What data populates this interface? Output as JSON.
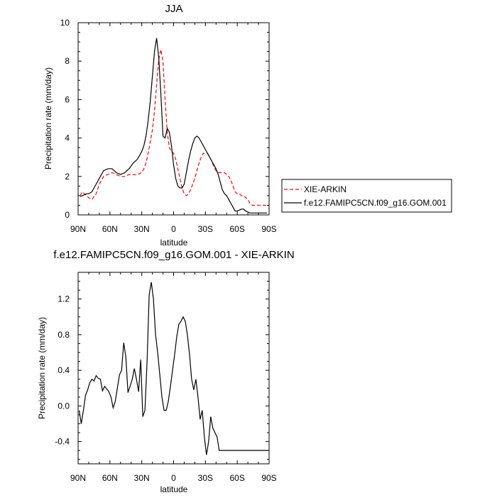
{
  "chart_data": [
    {
      "type": "line",
      "title": "JJA",
      "xlabel": "latitude",
      "ylabel": "Precipitation rate (mm/day)",
      "xlim": [
        -90,
        90
      ],
      "ylim": [
        0,
        10
      ],
      "x_ticks": [
        -90,
        -60,
        -30,
        0,
        30,
        60,
        90
      ],
      "x_tick_labels": [
        "90N",
        "60N",
        "30N",
        "0",
        "30S",
        "60S",
        "90S"
      ],
      "y_ticks": [
        0,
        2,
        4,
        6,
        8,
        10
      ],
      "y_tick_labels": [
        "0",
        "2",
        "4",
        "6",
        "8",
        "10"
      ],
      "legend": {
        "placement": "outside-right",
        "entries": [
          "XIE-ARKIN",
          "f.e12.FAMIPC5CN.f09_g16.GOM.001"
        ]
      },
      "series": [
        {
          "name": "XIE-ARKIN",
          "style": "dashed",
          "color": "#ff0000",
          "x": [
            -88,
            -86,
            -84,
            -82,
            -80,
            -77,
            -73,
            -70,
            -66,
            -62,
            -58,
            -54,
            -50,
            -46,
            -42,
            -38,
            -34,
            -30,
            -28,
            -26,
            -24,
            -22,
            -20,
            -18,
            -16,
            -14,
            -12,
            -10,
            -8,
            -6,
            -4,
            -2,
            0,
            2,
            4,
            6,
            8,
            10,
            12,
            14,
            16,
            18,
            20,
            22,
            24,
            26,
            28,
            30,
            32,
            34,
            36,
            38,
            40,
            42,
            44,
            46,
            48,
            50,
            52,
            54,
            56,
            58,
            60,
            62,
            64,
            66,
            68,
            70,
            72,
            74,
            76,
            78,
            80,
            82,
            84,
            86,
            88
          ],
          "values": [
            1.0,
            1.2,
            1.1,
            1.0,
            0.9,
            0.8,
            1.1,
            1.6,
            2.0,
            2.1,
            2.2,
            2.1,
            2.0,
            2.0,
            2.1,
            2.1,
            2.1,
            2.2,
            2.4,
            2.7,
            3.2,
            3.8,
            4.4,
            5.4,
            6.8,
            8.1,
            8.6,
            8.0,
            6.0,
            4.3,
            3.5,
            3.3,
            3.2,
            2.9,
            2.4,
            1.9,
            1.4,
            1.1,
            1.0,
            1.1,
            1.3,
            1.6,
            1.9,
            2.3,
            2.7,
            3.0,
            3.2,
            3.2,
            3.2,
            3.0,
            2.8,
            2.5,
            2.3,
            2.2,
            2.2,
            2.2,
            2.2,
            2.1,
            2.0,
            1.8,
            1.5,
            1.2,
            1.1,
            1.1,
            1.0,
            1.0,
            0.9,
            0.8,
            0.6,
            0.5,
            0.5,
            0.5,
            0.5,
            0.5,
            0.5,
            0.5,
            0.5
          ]
        },
        {
          "name": "f.e12.FAMIPC5CN.f09_g16.GOM.001",
          "style": "solid",
          "color": "#000000",
          "x": [
            -88,
            -86,
            -84,
            -82,
            -80,
            -77,
            -73,
            -70,
            -66,
            -62,
            -58,
            -54,
            -50,
            -46,
            -42,
            -38,
            -34,
            -30,
            -28,
            -26,
            -24,
            -22,
            -20,
            -18,
            -16,
            -14,
            -12,
            -10,
            -8,
            -6,
            -4,
            -2,
            0,
            2,
            4,
            6,
            8,
            10,
            12,
            14,
            16,
            18,
            20,
            22,
            24,
            26,
            28,
            30,
            32,
            34,
            36,
            38,
            40,
            42,
            44,
            46,
            48,
            50,
            52,
            54,
            56,
            58,
            60,
            62,
            64,
            66,
            68,
            70,
            72,
            74,
            76,
            78,
            80,
            82,
            84,
            86,
            88
          ],
          "values": [
            0.95,
            1.0,
            1.05,
            1.1,
            1.1,
            1.2,
            1.6,
            1.9,
            2.3,
            2.4,
            2.4,
            2.2,
            2.1,
            2.2,
            2.4,
            2.7,
            2.9,
            3.3,
            3.6,
            4.1,
            4.9,
            5.9,
            7.2,
            8.5,
            9.2,
            8.2,
            6.3,
            4.1,
            4.0,
            4.5,
            4.3,
            3.6,
            2.6,
            1.9,
            1.5,
            1.4,
            1.4,
            1.6,
            2.2,
            2.8,
            3.3,
            3.7,
            4.0,
            4.1,
            4.0,
            3.8,
            3.6,
            3.4,
            3.2,
            3.0,
            2.8,
            2.6,
            2.4,
            2.1,
            1.7,
            1.3,
            1.1,
            1.0,
            0.8,
            0.6,
            0.4,
            0.2,
            0.2,
            0.25,
            0.3,
            0.3,
            0.2,
            0.15,
            0.1,
            0.1,
            0.1,
            0.1,
            0.1,
            0.1,
            0.1,
            0.1,
            0.1
          ]
        }
      ]
    },
    {
      "type": "line",
      "title": "f.e12.FAMIPC5CN.f09_g16.GOM.001 - XIE-ARKIN",
      "xlabel": "latitude",
      "ylabel": "Precipitation rate (mm/day)",
      "xlim": [
        -90,
        90
      ],
      "ylim": [
        -0.65,
        1.5
      ],
      "x_ticks": [
        -90,
        -60,
        -30,
        0,
        30,
        60,
        90
      ],
      "x_tick_labels": [
        "90N",
        "60N",
        "30N",
        "0",
        "30S",
        "60S",
        "90S"
      ],
      "y_ticks": [
        -0.4,
        0.0,
        0.4,
        0.8,
        1.2
      ],
      "y_tick_labels": [
        "-0.4",
        "0.0",
        "0.4",
        "0.8",
        "1.2"
      ],
      "series": [
        {
          "name": "f.e12.FAMIPC5CN.f09_g16.GOM.001 - XIE-ARKIN",
          "style": "solid",
          "color": "#000000",
          "x": [
            -89,
            -87,
            -85,
            -83,
            -81,
            -79,
            -77,
            -75,
            -73,
            -71,
            -69,
            -67,
            -65,
            -63,
            -61,
            -59,
            -57,
            -55,
            -53,
            -51,
            -49,
            -47,
            -45,
            -43,
            -41,
            -39,
            -37,
            -35,
            -33,
            -31,
            -29,
            -27,
            -25,
            -23,
            -21,
            -19,
            -17,
            -15,
            -13,
            -11,
            -9,
            -7,
            -5,
            -3,
            -1,
            1,
            3,
            5,
            7,
            9,
            11,
            13,
            15,
            17,
            19,
            21,
            23,
            25,
            27,
            29,
            31,
            33,
            35,
            37,
            39,
            41,
            43,
            45,
            47,
            49,
            51,
            53,
            55,
            57,
            59,
            61,
            63,
            65,
            67,
            69,
            71,
            73,
            75,
            77,
            79,
            81,
            83,
            85,
            87,
            89
          ],
          "values": [
            -0.05,
            -0.2,
            -0.05,
            0.12,
            0.18,
            0.26,
            0.3,
            0.28,
            0.34,
            0.31,
            0.3,
            0.17,
            0.22,
            0.19,
            0.16,
            0.1,
            -0.02,
            0.05,
            0.2,
            0.35,
            0.4,
            0.71,
            0.55,
            0.15,
            0.22,
            0.3,
            0.42,
            0.3,
            0.16,
            0.52,
            -0.12,
            -0.05,
            0.5,
            1.25,
            1.39,
            1.2,
            0.8,
            0.6,
            0.35,
            0.1,
            -0.05,
            -0.05,
            0.05,
            0.22,
            0.4,
            0.58,
            0.78,
            0.92,
            0.95,
            1.0,
            0.95,
            0.8,
            0.58,
            0.3,
            0.18,
            0.3,
            0.1,
            -0.15,
            -0.05,
            -0.35,
            -0.55,
            -0.4,
            -0.12,
            -0.25,
            -0.3,
            -0.35,
            -0.5,
            -0.5,
            -0.5,
            -0.5,
            -0.5,
            -0.5,
            -0.5,
            -0.5,
            -0.5,
            -0.5,
            -0.5,
            -0.5,
            -0.5,
            -0.5,
            -0.5,
            -0.5,
            -0.5,
            -0.5,
            -0.5,
            -0.5,
            -0.5,
            -0.5,
            -0.5,
            -0.5
          ]
        }
      ]
    }
  ]
}
